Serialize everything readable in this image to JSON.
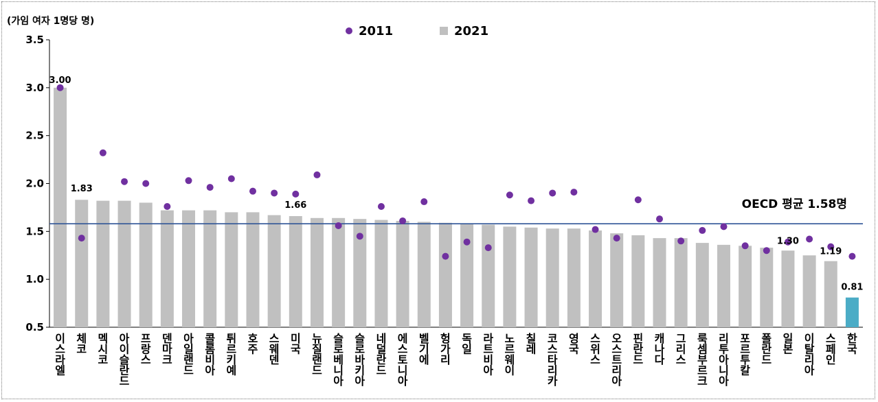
{
  "chart_data": {
    "type": "bar",
    "unit_label": "(가임 여자 1명당 명)",
    "ylim": [
      0.5,
      3.5
    ],
    "yticks": [
      "0.5",
      "1.0",
      "1.5",
      "2.0",
      "2.5",
      "3.0",
      "3.5"
    ],
    "categories": [
      "이스라엘",
      "체코",
      "멕시코",
      "아이슬란드",
      "프랑스",
      "덴마크",
      "아일랜드",
      "콜롬비아",
      "튀르키예",
      "호주",
      "스웨덴",
      "미국",
      "뉴질랜드",
      "슬로베니아",
      "슬로바키아",
      "네덜란드",
      "에스토니아",
      "벨기에",
      "헝가리",
      "독일",
      "라트비아",
      "노르웨이",
      "칠레",
      "코스타리카",
      "영국",
      "스위스",
      "오스트리아",
      "핀란드",
      "캐나다",
      "그리스",
      "룩셈부르크",
      "리투아니아",
      "포르투칼",
      "폴란드",
      "일본",
      "이탈리아",
      "스페인",
      "한국"
    ],
    "series": [
      {
        "name": "2011",
        "type": "scatter",
        "color": "#7030A0",
        "values": [
          3.0,
          1.43,
          2.32,
          2.02,
          2.0,
          1.76,
          2.03,
          1.96,
          2.05,
          1.92,
          1.9,
          1.89,
          2.09,
          1.56,
          1.45,
          1.76,
          1.61,
          1.81,
          1.24,
          1.39,
          1.33,
          1.88,
          1.82,
          1.9,
          1.91,
          1.52,
          1.43,
          1.83,
          1.63,
          1.4,
          1.51,
          1.55,
          1.35,
          1.3,
          1.39,
          1.42,
          1.34,
          1.24
        ]
      },
      {
        "name": "2021",
        "type": "bar",
        "color": "#C0C0C0",
        "values": [
          3.0,
          1.83,
          1.82,
          1.82,
          1.8,
          1.72,
          1.72,
          1.72,
          1.7,
          1.7,
          1.67,
          1.66,
          1.64,
          1.64,
          1.63,
          1.62,
          1.61,
          1.6,
          1.59,
          1.58,
          1.57,
          1.55,
          1.54,
          1.53,
          1.53,
          1.51,
          1.48,
          1.46,
          1.43,
          1.43,
          1.38,
          1.36,
          1.35,
          1.33,
          1.3,
          1.25,
          1.19,
          0.81
        ]
      }
    ],
    "highlight": {
      "category": "한국",
      "color": "#4BACC6"
    },
    "data_labels": [
      {
        "category": "이스라엘",
        "text": "3.00"
      },
      {
        "category": "체코",
        "text": "1.83"
      },
      {
        "category": "미국",
        "text": "1.66"
      },
      {
        "category": "일본",
        "text": "1.30"
      },
      {
        "category": "스페인",
        "text": "1.19"
      },
      {
        "category": "한국",
        "text": "0.81"
      }
    ],
    "reference_line": {
      "value": 1.58,
      "label": "OECD 평균 1.58명",
      "color": "#2F5597"
    },
    "legend": {
      "position": "top-center"
    },
    "grid": false
  }
}
